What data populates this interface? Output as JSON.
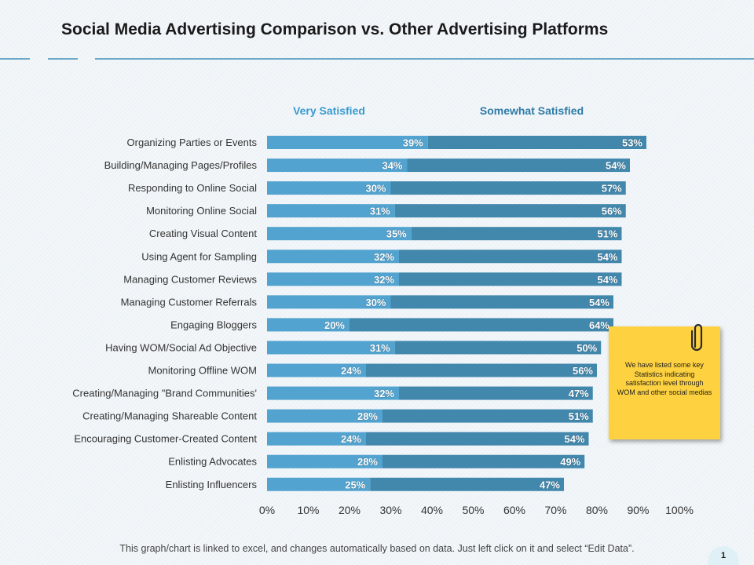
{
  "title": "Social Media Advertising Comparison vs. Other Advertising Platforms",
  "sticky_note": "We have listed some key Statistics indicating satisfaction level through WOM  and other social medias",
  "footer": "This graph/chart is linked to excel, and changes automatically based on data.  Just left click on it and select “Edit Data”.",
  "page_number": "1",
  "colors": {
    "very_satisfied": "#52a3cf",
    "somewhat_satisfied": "#4287ac",
    "legend_very": "#3a9bd0",
    "legend_somewhat": "#2e7ba6",
    "sticky_note": "#fdd13f"
  },
  "chart_data": {
    "type": "bar",
    "orientation": "horizontal",
    "stacked": true,
    "legend_position": "top",
    "categories": [
      "Organizing Parties or Events",
      "Building/Managing Pages/Profiles",
      "Responding to Online Social",
      "Monitoring Online Social",
      "Creating Visual Content",
      "Using Agent for Sampling",
      "Managing Customer Reviews",
      "Managing Customer Referrals",
      "Engaging Bloggers",
      "Having WOM/Social Ad Objective",
      "Monitoring Offline WOM",
      "Creating/Managing \"Brand Communities'",
      "Creating/Managing Shareable Content",
      "Encouraging Customer-Created Content",
      "Enlisting Advocates",
      "Enlisting Influencers"
    ],
    "series": [
      {
        "name": "Very Satisfied",
        "values": [
          39,
          34,
          30,
          31,
          35,
          32,
          32,
          30,
          20,
          31,
          24,
          32,
          28,
          24,
          28,
          25
        ]
      },
      {
        "name": "Somewhat Satisfied",
        "values": [
          53,
          54,
          57,
          56,
          51,
          54,
          54,
          54,
          64,
          50,
          56,
          47,
          51,
          54,
          49,
          47
        ]
      }
    ],
    "xlim": [
      0,
      100
    ],
    "x_ticks": [
      "0%",
      "10%",
      "20%",
      "30%",
      "40%",
      "50%",
      "60%",
      "70%",
      "80%",
      "90%",
      "100%"
    ],
    "data_label_suffix": "%",
    "grid": false
  }
}
